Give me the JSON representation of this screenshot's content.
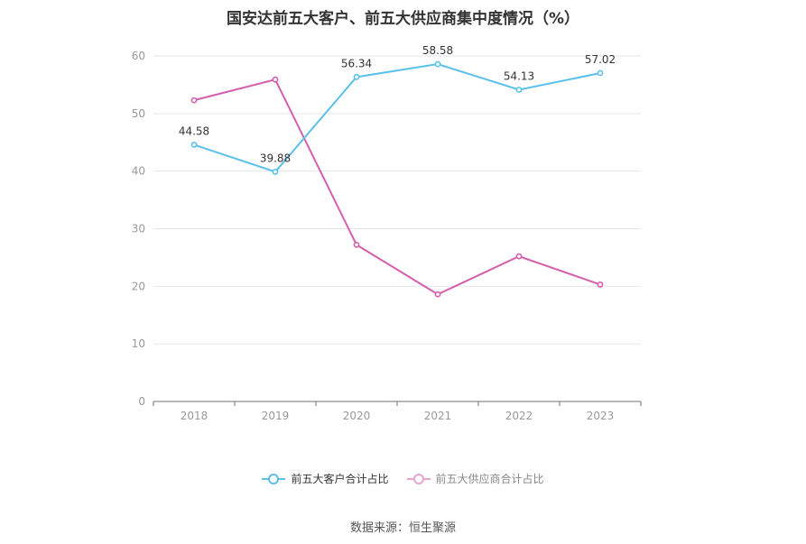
{
  "chart_data": {
    "type": "line",
    "title": "国安达前五大客户、前五大供应商集中度情况（%）",
    "categories": [
      "2018",
      "2019",
      "2020",
      "2021",
      "2022",
      "2023"
    ],
    "ylim": [
      0,
      60
    ],
    "yticks": [
      0,
      10,
      20,
      30,
      40,
      50,
      60
    ],
    "grid": true,
    "legend_position": "bottom",
    "series": [
      {
        "name": "前五大客户合计占比",
        "color": "#5bc0eb",
        "values": [
          44.58,
          39.88,
          56.34,
          58.58,
          54.13,
          57.02
        ],
        "labels": [
          "44.58",
          "39.88",
          "56.34",
          "58.58",
          "54.13",
          "57.02"
        ]
      },
      {
        "name": "前五大供应商合计占比",
        "color": "#d45fac",
        "values": [
          52.3,
          55.9,
          27.2,
          18.6,
          25.2,
          20.3
        ],
        "labels": []
      }
    ],
    "source": "数据来源：恒生聚源"
  }
}
